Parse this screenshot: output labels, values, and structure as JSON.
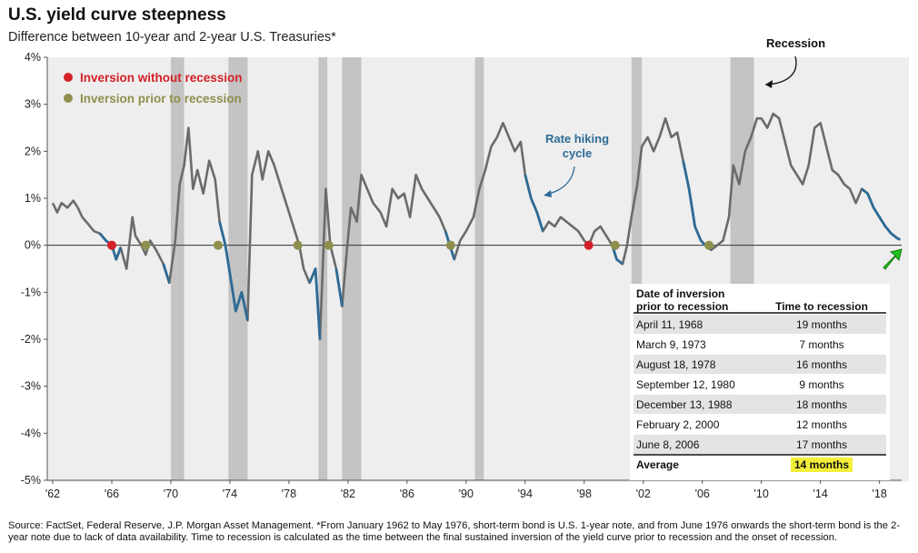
{
  "chart_data": {
    "type": "line",
    "title": "U.S. yield curve steepness",
    "subtitle": "Difference between 10-year and 2-year U.S. Treasuries*",
    "ylim": [
      -5,
      4
    ],
    "xlim": [
      1962,
      2019.5
    ],
    "y_ticks": [
      {
        "value": 4,
        "label": "4%"
      },
      {
        "value": 3,
        "label": "3%"
      },
      {
        "value": 2,
        "label": "2%"
      },
      {
        "value": 1,
        "label": "1%"
      },
      {
        "value": 0,
        "label": "0%"
      },
      {
        "value": -1,
        "label": "-1%"
      },
      {
        "value": -2,
        "label": "-2%"
      },
      {
        "value": -3,
        "label": "-3%"
      },
      {
        "value": -4,
        "label": "-4%"
      },
      {
        "value": -5,
        "label": "-5%"
      }
    ],
    "x_ticks": [
      {
        "value": 1962,
        "label": "'62"
      },
      {
        "value": 1966,
        "label": "'66"
      },
      {
        "value": 1970,
        "label": "'70"
      },
      {
        "value": 1974,
        "label": "'74"
      },
      {
        "value": 1978,
        "label": "'78"
      },
      {
        "value": 1982,
        "label": "'82"
      },
      {
        "value": 1986,
        "label": "'86"
      },
      {
        "value": 1990,
        "label": "'90"
      },
      {
        "value": 1994,
        "label": "'94"
      },
      {
        "value": 1998,
        "label": "'98"
      },
      {
        "value": 2002,
        "label": "'02"
      },
      {
        "value": 2006,
        "label": "'06"
      },
      {
        "value": 2010,
        "label": "'10"
      },
      {
        "value": 2014,
        "label": "'14"
      },
      {
        "value": 2018,
        "label": "'18"
      }
    ],
    "recessions": [
      [
        1970.0,
        1970.9
      ],
      [
        1973.9,
        1975.2
      ],
      [
        1980.0,
        1980.6
      ],
      [
        1981.6,
        1982.9
      ],
      [
        1990.6,
        1991.2
      ],
      [
        2001.2,
        2001.9
      ],
      [
        2007.9,
        2009.5
      ]
    ],
    "series": [
      {
        "color": "#6b6b6b",
        "points": [
          [
            1962,
            0.9
          ],
          [
            1962.3,
            0.7
          ],
          [
            1962.6,
            0.9
          ],
          [
            1963,
            0.8
          ],
          [
            1963.4,
            0.95
          ],
          [
            1963.7,
            0.8
          ],
          [
            1964,
            0.6
          ],
          [
            1964.4,
            0.45
          ],
          [
            1964.8,
            0.3
          ],
          [
            1965.2,
            0.25
          ],
          [
            1965.6,
            0.1
          ],
          [
            1966,
            0.0
          ],
          [
            1966.3,
            -0.3
          ],
          [
            1966.6,
            -0.05
          ],
          [
            1967,
            -0.5
          ],
          [
            1967.4,
            0.6
          ],
          [
            1967.6,
            0.2
          ],
          [
            1968,
            0.0
          ],
          [
            1968.3,
            -0.2
          ],
          [
            1968.6,
            0.1
          ],
          [
            1969,
            -0.1
          ],
          [
            1969.5,
            -0.4
          ],
          [
            1969.9,
            -0.8
          ],
          [
            1970.3,
            0.1
          ],
          [
            1970.6,
            1.3
          ],
          [
            1970.9,
            1.7
          ],
          [
            1971.2,
            2.5
          ],
          [
            1971.5,
            1.2
          ],
          [
            1971.8,
            1.6
          ],
          [
            1972.2,
            1.1
          ],
          [
            1972.6,
            1.8
          ],
          [
            1973,
            1.4
          ],
          [
            1973.3,
            0.5
          ],
          [
            1973.7,
            0.0
          ],
          [
            1974,
            -0.6
          ],
          [
            1974.4,
            -1.4
          ],
          [
            1974.8,
            -1.0
          ],
          [
            1975.2,
            -1.6
          ],
          [
            1975.5,
            1.5
          ],
          [
            1975.9,
            2.0
          ],
          [
            1976.2,
            1.4
          ],
          [
            1976.6,
            2.0
          ],
          [
            1977,
            1.7
          ],
          [
            1977.5,
            1.2
          ],
          [
            1977.9,
            0.8
          ],
          [
            1978.3,
            0.4
          ],
          [
            1978.7,
            0.0
          ],
          [
            1979,
            -0.5
          ],
          [
            1979.4,
            -0.8
          ],
          [
            1979.8,
            -0.5
          ],
          [
            1980.1,
            -2.0
          ],
          [
            1980.5,
            1.2
          ],
          [
            1980.8,
            0.0
          ],
          [
            1981.2,
            -0.5
          ],
          [
            1981.6,
            -1.3
          ],
          [
            1981.9,
            -0.2
          ],
          [
            1982.2,
            0.8
          ],
          [
            1982.6,
            0.5
          ],
          [
            1982.9,
            1.5
          ],
          [
            1983.3,
            1.2
          ],
          [
            1983.7,
            0.9
          ],
          [
            1984.2,
            0.7
          ],
          [
            1984.6,
            0.4
          ],
          [
            1985,
            1.2
          ],
          [
            1985.4,
            1.0
          ],
          [
            1985.8,
            1.1
          ],
          [
            1986.2,
            0.6
          ],
          [
            1986.6,
            1.5
          ],
          [
            1987,
            1.2
          ],
          [
            1987.4,
            1.0
          ],
          [
            1987.8,
            0.8
          ],
          [
            1988.2,
            0.6
          ],
          [
            1988.6,
            0.3
          ],
          [
            1988.9,
            0.0
          ],
          [
            1989.2,
            -0.3
          ],
          [
            1989.6,
            0.1
          ],
          [
            1990,
            0.3
          ],
          [
            1990.5,
            0.6
          ],
          [
            1990.9,
            1.2
          ],
          [
            1991.3,
            1.6
          ],
          [
            1991.7,
            2.1
          ],
          [
            1992.1,
            2.3
          ],
          [
            1992.5,
            2.6
          ],
          [
            1992.9,
            2.3
          ],
          [
            1993.3,
            2.0
          ],
          [
            1993.7,
            2.2
          ],
          [
            1994,
            1.5
          ],
          [
            1994.4,
            1.0
          ],
          [
            1994.8,
            0.7
          ],
          [
            1995.2,
            0.3
          ],
          [
            1995.6,
            0.5
          ],
          [
            1996,
            0.4
          ],
          [
            1996.4,
            0.6
          ],
          [
            1996.8,
            0.5
          ],
          [
            1997.2,
            0.4
          ],
          [
            1997.6,
            0.3
          ],
          [
            1998,
            0.1
          ],
          [
            1998.3,
            0.0
          ],
          [
            1998.7,
            0.3
          ],
          [
            1999.1,
            0.4
          ],
          [
            1999.5,
            0.2
          ],
          [
            1999.9,
            0.0
          ],
          [
            2000.2,
            -0.3
          ],
          [
            2000.6,
            -0.4
          ],
          [
            2000.9,
            0.0
          ],
          [
            2001.2,
            0.6
          ],
          [
            2001.6,
            1.3
          ],
          [
            2001.9,
            2.1
          ],
          [
            2002.3,
            2.3
          ],
          [
            2002.7,
            2.0
          ],
          [
            2003.1,
            2.3
          ],
          [
            2003.5,
            2.7
          ],
          [
            2003.9,
            2.3
          ],
          [
            2004.3,
            2.4
          ],
          [
            2004.7,
            1.8
          ],
          [
            2005.1,
            1.2
          ],
          [
            2005.5,
            0.4
          ],
          [
            2005.9,
            0.1
          ],
          [
            2006.2,
            0.0
          ],
          [
            2006.6,
            -0.1
          ],
          [
            2007,
            0.0
          ],
          [
            2007.4,
            0.1
          ],
          [
            2007.8,
            0.6
          ],
          [
            2008.1,
            1.7
          ],
          [
            2008.5,
            1.3
          ],
          [
            2008.9,
            2.0
          ],
          [
            2009.3,
            2.3
          ],
          [
            2009.7,
            2.7
          ],
          [
            2010,
            2.7
          ],
          [
            2010.4,
            2.5
          ],
          [
            2010.8,
            2.8
          ],
          [
            2011.2,
            2.7
          ],
          [
            2011.6,
            2.2
          ],
          [
            2012,
            1.7
          ],
          [
            2012.4,
            1.5
          ],
          [
            2012.8,
            1.3
          ],
          [
            2013.2,
            1.7
          ],
          [
            2013.6,
            2.5
          ],
          [
            2014,
            2.6
          ],
          [
            2014.4,
            2.1
          ],
          [
            2014.8,
            1.6
          ],
          [
            2015.2,
            1.5
          ],
          [
            2015.6,
            1.3
          ],
          [
            2016,
            1.2
          ],
          [
            2016.4,
            0.9
          ],
          [
            2016.8,
            1.2
          ],
          [
            2017.2,
            1.1
          ],
          [
            2017.6,
            0.8
          ],
          [
            2018,
            0.6
          ],
          [
            2018.4,
            0.4
          ],
          [
            2018.8,
            0.25
          ],
          [
            2019.2,
            0.15
          ],
          [
            2019.4,
            0.12
          ]
        ]
      },
      {
        "color": "#2e6b96",
        "segments": [
          [
            [
              1965.2,
              0.25
            ],
            [
              1965.6,
              0.1
            ],
            [
              1966,
              0.0
            ],
            [
              1966.3,
              -0.3
            ],
            [
              1966.6,
              -0.05
            ]
          ],
          [
            [
              1969.5,
              -0.4
            ],
            [
              1969.9,
              -0.8
            ]
          ],
          [
            [
              1973.3,
              0.5
            ],
            [
              1973.7,
              0.0
            ],
            [
              1974,
              -0.6
            ],
            [
              1974.4,
              -1.4
            ],
            [
              1974.8,
              -1.0
            ],
            [
              1975.2,
              -1.6
            ]
          ],
          [
            [
              1979.4,
              -0.8
            ],
            [
              1979.8,
              -0.5
            ],
            [
              1980.1,
              -2.0
            ]
          ],
          [
            [
              1981.2,
              -0.5
            ],
            [
              1981.6,
              -1.3
            ]
          ],
          [
            [
              1988.6,
              0.3
            ],
            [
              1988.9,
              0.0
            ],
            [
              1989.2,
              -0.3
            ]
          ],
          [
            [
              1994,
              1.5
            ],
            [
              1994.4,
              1.0
            ],
            [
              1994.8,
              0.7
            ],
            [
              1995.2,
              0.3
            ]
          ],
          [
            [
              1999.9,
              0.0
            ],
            [
              2000.2,
              -0.3
            ],
            [
              2000.6,
              -0.4
            ]
          ],
          [
            [
              2004.7,
              1.8
            ],
            [
              2005.1,
              1.2
            ],
            [
              2005.5,
              0.4
            ],
            [
              2005.9,
              0.1
            ],
            [
              2006.2,
              0.0
            ],
            [
              2006.6,
              -0.1
            ]
          ],
          [
            [
              2016.8,
              1.2
            ],
            [
              2017.2,
              1.1
            ],
            [
              2017.6,
              0.8
            ],
            [
              2018,
              0.6
            ],
            [
              2018.4,
              0.4
            ],
            [
              2018.8,
              0.25
            ],
            [
              2019.2,
              0.15
            ],
            [
              2019.4,
              0.12
            ]
          ]
        ]
      }
    ],
    "markers": [
      {
        "x": 1966.0,
        "y": 0,
        "color": "#d32027",
        "kind": "inversion-without-recession"
      },
      {
        "x": 1998.3,
        "y": 0,
        "color": "#d32027",
        "kind": "inversion-without-recession"
      },
      {
        "x": 1968.3,
        "y": 0,
        "color": "#8f8f4d",
        "kind": "inversion-prior-to-recession"
      },
      {
        "x": 1973.2,
        "y": 0,
        "color": "#8f8f4d",
        "kind": "inversion-prior-to-recession"
      },
      {
        "x": 1978.6,
        "y": 0,
        "color": "#8f8f4d",
        "kind": "inversion-prior-to-recession"
      },
      {
        "x": 1980.7,
        "y": 0,
        "color": "#8f8f4d",
        "kind": "inversion-prior-to-recession"
      },
      {
        "x": 1988.95,
        "y": 0,
        "color": "#8f8f4d",
        "kind": "inversion-prior-to-recession"
      },
      {
        "x": 2000.1,
        "y": 0,
        "color": "#8f8f4d",
        "kind": "inversion-prior-to-recession"
      },
      {
        "x": 2006.45,
        "y": 0,
        "color": "#8f8f4d",
        "kind": "inversion-prior-to-recession"
      }
    ],
    "legend": {
      "placement": "top-left",
      "items": [
        {
          "label": "Inversion without recession",
          "color": "#d32027"
        },
        {
          "label": "Inversion prior to recession",
          "color": "#8f8f4d"
        }
      ]
    },
    "annotations": {
      "recession": "Recession",
      "rate_hiking_line1": "Rate hiking",
      "rate_hiking_line2": "cycle"
    },
    "table": {
      "header_col1_line1": "Date of inversion",
      "header_col1_line2": "prior to recession",
      "header_col2": "Time to recession",
      "rows": [
        {
          "date": "April 11, 1968",
          "time": "19 months"
        },
        {
          "date": "March 9, 1973",
          "time": "7 months"
        },
        {
          "date": "August 18, 1978",
          "time": "16 months"
        },
        {
          "date": "September 12, 1980",
          "time": "9 months"
        },
        {
          "date": "December 13, 1988",
          "time": "18 months"
        },
        {
          "date": "February 2, 2000",
          "time": "12 months"
        },
        {
          "date": "June 8, 2006",
          "time": "17 months"
        }
      ],
      "footer_label": "Average",
      "footer_value": "14 months",
      "highlight_color": "#f3ee3a"
    },
    "colors": {
      "recession_band": "#c4c4c4",
      "gray_line": "#6b6b6b",
      "blue_line": "#2e6b96",
      "annotation_blue": "#2e6b96",
      "plot_background": "#eeeeee",
      "arrow_green": "#22c21e"
    }
  },
  "footnote": "Source: FactSet, Federal Reserve, J.P. Morgan Asset Management. *From January 1962 to May 1976, short-term bond is U.S. 1-year note, and from June 1976 onwards the short-term bond is the 2-year note due to lack of data availability. Time to recession is calculated as the time between the final sustained inversion of the yield curve prior to recession and the onset of recession."
}
